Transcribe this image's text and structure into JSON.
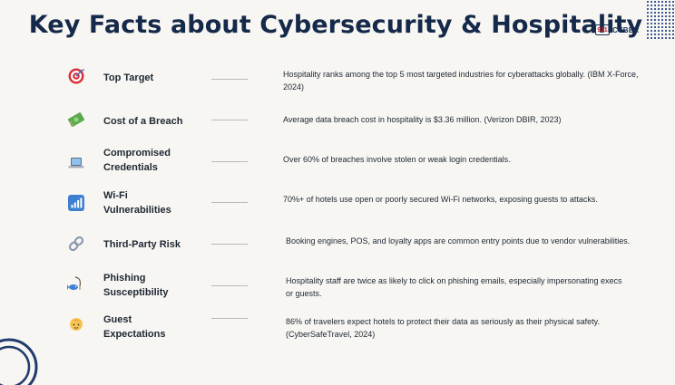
{
  "title": "Key Facts about Cybersecurity & Hospitality",
  "logo": {
    "mark": "911",
    "word": "CYBER"
  },
  "facts": [
    {
      "icon": "target-icon",
      "label": "Top Target",
      "description": "Hospitality ranks among the top 5 most targeted industries for cyberattacks globally. (IBM X-Force, 2024)"
    },
    {
      "icon": "money-icon",
      "label": "Cost of a Breach",
      "description": "Average data breach cost in hospitality is $3.36 million. (Verizon DBIR, 2023)"
    },
    {
      "icon": "laptop-icon",
      "label": "Compromised Credentials",
      "description": "Over 60% of breaches involve stolen or weak login credentials."
    },
    {
      "icon": "signal-icon",
      "label": "Wi-Fi Vulnerabilities",
      "description": "70%+ of hotels use open or poorly secured Wi-Fi networks, exposing guests to attacks."
    },
    {
      "icon": "link-icon",
      "label": "Third-Party Risk",
      "description": "Booking engines, POS, and loyalty apps are common entry points due to vendor vulnerabilities."
    },
    {
      "icon": "fishing-icon",
      "label": "Phishing Susceptibility",
      "description": "Hospitality staff are twice as likely to click on phishing emails, especially impersonating execs or guests."
    },
    {
      "icon": "person-icon",
      "label": "Guest Expectations",
      "description": "86% of travelers expect hotels to protect their data as seriously as their physical safety. (CyberSafeTravel, 2024)"
    }
  ]
}
